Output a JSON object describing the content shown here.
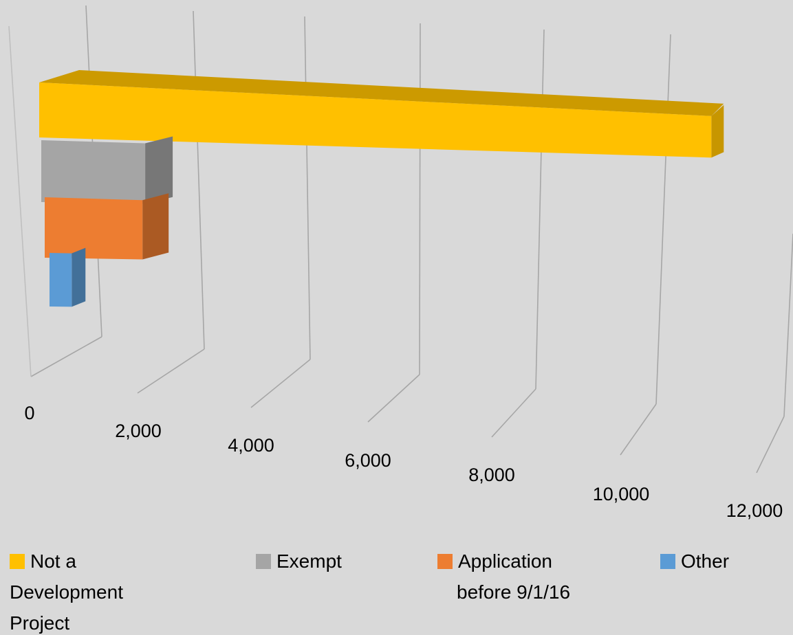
{
  "chart_data": {
    "type": "bar",
    "orientation": "horizontal",
    "style": "3d",
    "title": "",
    "xlabel": "",
    "ylabel": "",
    "xlim": [
      0,
      12000
    ],
    "x_ticks": [
      "0",
      "2,000",
      "4,000",
      "6,000",
      "8,000",
      "10,000",
      "12,000"
    ],
    "x_tick_values": [
      0,
      2000,
      4000,
      6000,
      8000,
      10000,
      12000
    ],
    "grid": true,
    "legend_position": "bottom",
    "series": [
      {
        "name": "Not a Development Project",
        "value": 11600,
        "color": "#ffc000"
      },
      {
        "name": "Exempt",
        "value": 1850,
        "color": "#a5a5a5"
      },
      {
        "name": "Application before 9/1/16",
        "value": 1750,
        "color": "#ed7d31"
      },
      {
        "name": "Other",
        "value": 400,
        "color": "#5b9bd5"
      }
    ],
    "legend_lines": [
      [
        "Not a",
        "Development",
        "Project"
      ],
      [
        "Exempt"
      ],
      [
        "Application",
        "before 9/1/16"
      ],
      [
        "Other"
      ]
    ]
  }
}
